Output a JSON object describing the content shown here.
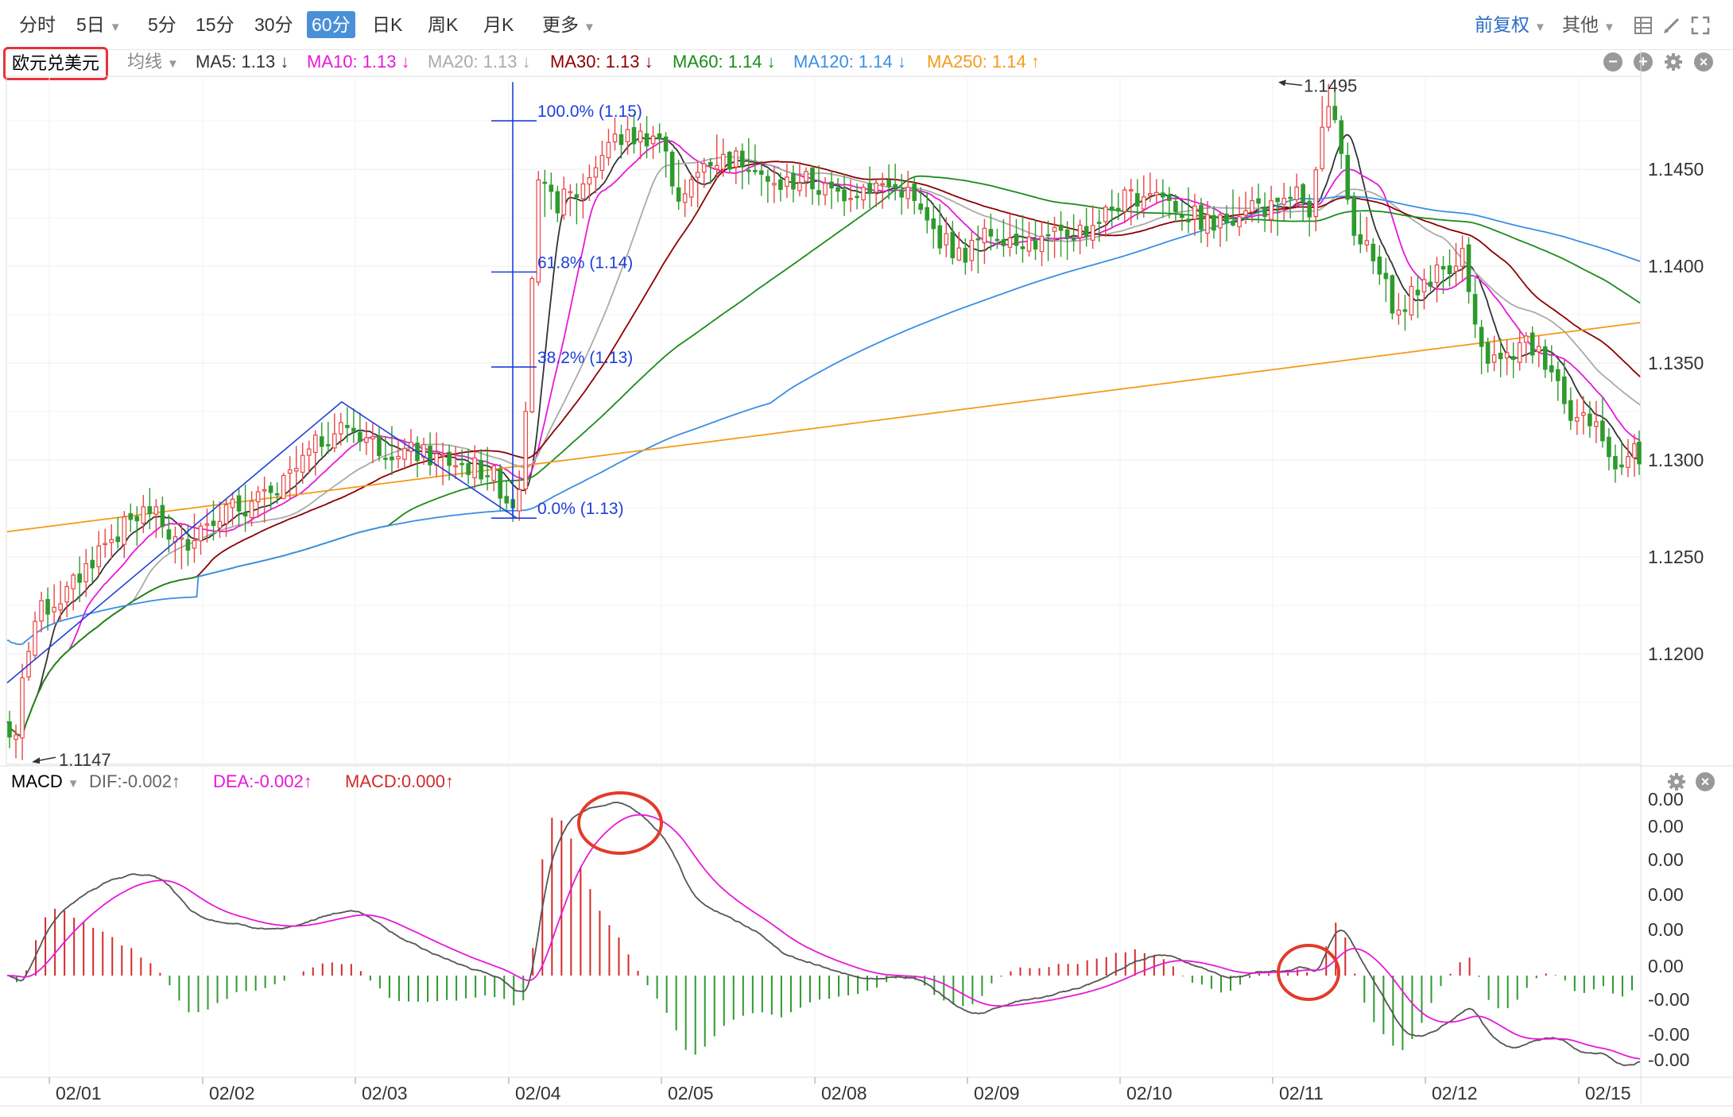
{
  "toolbar": {
    "tabs": [
      "分时",
      "5日",
      "5分",
      "15分",
      "30分",
      "60分",
      "日K",
      "周K",
      "月K",
      "更多"
    ],
    "active_tab": "60分",
    "adjust_label": "前复权",
    "other_label": "其他"
  },
  "symbol": "欧元兑美元",
  "ma_bar": {
    "type_label": "均线",
    "items": [
      {
        "label": "MA5: 1.13 ↓",
        "color": "#333333"
      },
      {
        "label": "MA10: 1.13 ↓",
        "color": "#e619d9"
      },
      {
        "label": "MA20: 1.13 ↓",
        "color": "#aaaaaa"
      },
      {
        "label": "MA30: 1.13 ↓",
        "color": "#8b0000"
      },
      {
        "label": "MA60: 1.14 ↓",
        "color": "#1a8c1a"
      },
      {
        "label": "MA120: 1.14 ↓",
        "color": "#3a8ee6"
      },
      {
        "label": "MA250: 1.14 ↑",
        "color": "#f59a1a"
      }
    ]
  },
  "macd_bar": {
    "name": "MACD",
    "dif_label": "DIF:-0.002↑",
    "dea_label": "DEA:-0.002↑",
    "macd_label": "MACD:0.000↑"
  },
  "chart_data": {
    "type": "candlestick",
    "price_ticks": [
      "1.1450",
      "1.1400",
      "1.1350",
      "1.1300",
      "1.1250",
      "1.1200"
    ],
    "price_tick_values": [
      1.145,
      1.14,
      1.135,
      1.13,
      1.125,
      1.12
    ],
    "ylim": [
      1.1143,
      1.1498
    ],
    "x_ticks": [
      "02/01",
      "02/02",
      "02/03",
      "02/04",
      "02/05",
      "02/08",
      "02/09",
      "02/10",
      "02/11",
      "02/12",
      "02/15"
    ],
    "annotations": {
      "high": "1.1495",
      "low": "1.1147"
    },
    "fibonacci": [
      {
        "label": "100.0% (1.15)",
        "value": 1.1475
      },
      {
        "label": "61.8% (1.14)",
        "value": 1.1397
      },
      {
        "label": "38.2% (1.13)",
        "value": 1.1348
      },
      {
        "label": "0.0% (1.13)",
        "value": 1.127
      }
    ],
    "macd_ticks": [
      "0.00",
      "0.00",
      "0.00",
      "0.00",
      "0.00",
      "0.00",
      "-0.00",
      "-0.00",
      "-0.00"
    ],
    "series": [
      {
        "name": "MA5",
        "color": "#333333"
      },
      {
        "name": "MA10",
        "color": "#e619d9"
      },
      {
        "name": "MA20",
        "color": "#aaaaaa"
      },
      {
        "name": "MA30",
        "color": "#8b0000"
      },
      {
        "name": "MA60",
        "color": "#1a8c1a"
      },
      {
        "name": "MA120",
        "color": "#3a8ee6"
      },
      {
        "name": "MA250",
        "color": "#f59a1a"
      }
    ],
    "close_keypoints": [
      [
        0,
        1.1165
      ],
      [
        8,
        1.1152
      ],
      [
        12,
        1.1195
      ],
      [
        20,
        1.122
      ],
      [
        40,
        1.1232
      ],
      [
        60,
        1.1255
      ],
      [
        90,
        1.1275
      ],
      [
        110,
        1.1255
      ],
      [
        130,
        1.1272
      ],
      [
        150,
        1.1276
      ],
      [
        170,
        1.1282
      ],
      [
        200,
        1.1312
      ],
      [
        215,
        1.1318
      ],
      [
        235,
        1.1307
      ],
      [
        260,
        1.1303
      ],
      [
        285,
        1.1298
      ],
      [
        305,
        1.1294
      ],
      [
        318,
        1.1276
      ],
      [
        325,
        1.1295
      ],
      [
        330,
        1.1385
      ],
      [
        335,
        1.144
      ],
      [
        345,
        1.1432
      ],
      [
        360,
        1.1438
      ],
      [
        380,
        1.1465
      ],
      [
        410,
        1.1468
      ],
      [
        425,
        1.1432
      ],
      [
        440,
        1.1455
      ],
      [
        470,
        1.1455
      ],
      [
        480,
        1.144
      ],
      [
        500,
        1.1445
      ],
      [
        520,
        1.1437
      ],
      [
        545,
        1.1442
      ],
      [
        565,
        1.144
      ],
      [
        580,
        1.142
      ],
      [
        600,
        1.1405
      ],
      [
        620,
        1.1418
      ],
      [
        650,
        1.1412
      ],
      [
        680,
        1.142
      ],
      [
        700,
        1.1433
      ],
      [
        720,
        1.144
      ],
      [
        740,
        1.1428
      ],
      [
        760,
        1.142
      ],
      [
        780,
        1.1433
      ],
      [
        800,
        1.1428
      ],
      [
        810,
        1.144
      ],
      [
        820,
        1.1418
      ],
      [
        826,
        1.1475
      ],
      [
        832,
        1.149
      ],
      [
        838,
        1.1458
      ],
      [
        845,
        1.1425
      ],
      [
        860,
        1.14
      ],
      [
        875,
        1.1375
      ],
      [
        890,
        1.1392
      ],
      [
        905,
        1.14
      ],
      [
        915,
        1.1407
      ],
      [
        925,
        1.1355
      ],
      [
        940,
        1.135
      ],
      [
        955,
        1.136
      ],
      [
        970,
        1.135
      ],
      [
        985,
        1.1322
      ],
      [
        1000,
        1.132
      ],
      [
        1005,
        1.1302
      ],
      [
        1015,
        1.13
      ],
      [
        1025,
        1.1304
      ]
    ],
    "n_bars": 1026
  }
}
